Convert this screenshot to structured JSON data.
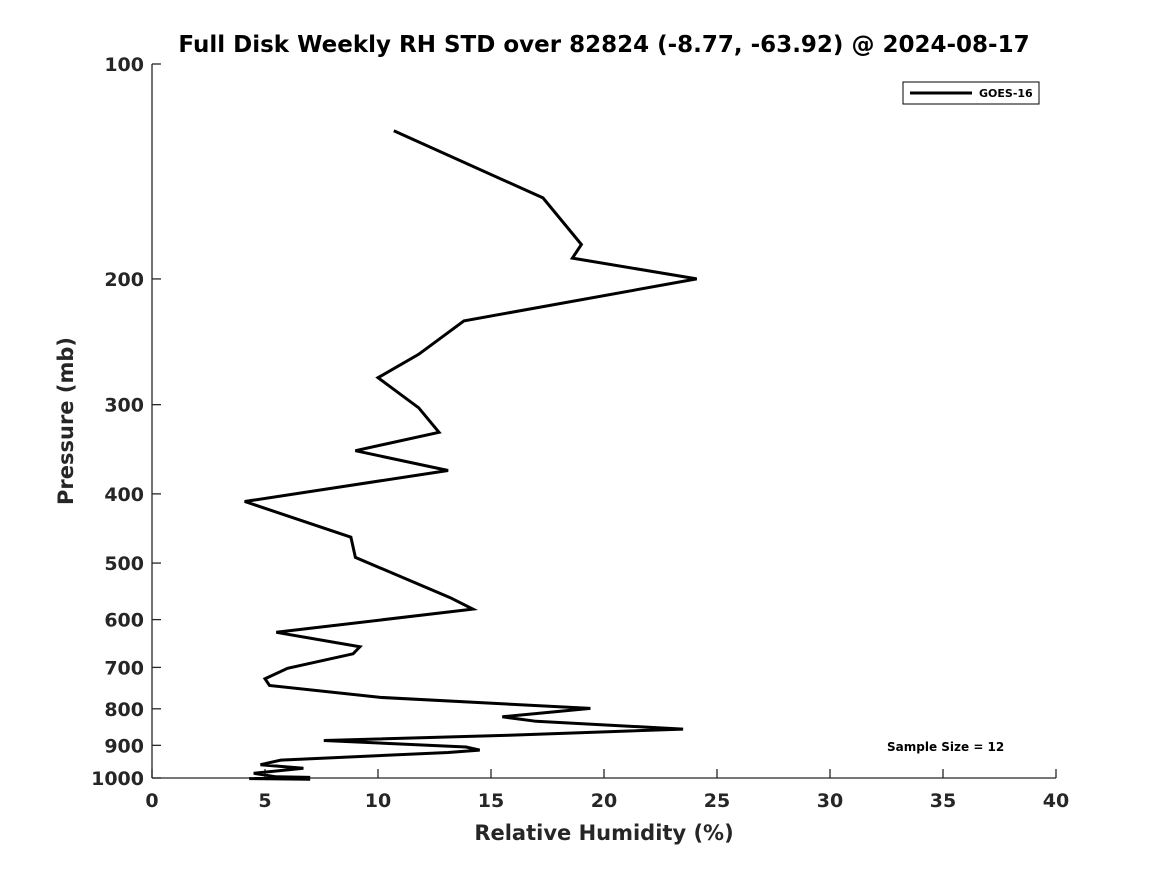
{
  "chart_data": {
    "type": "line",
    "title": "Full Disk Weekly RH STD over 82824 (-8.77, -63.92) @ 2024-08-17",
    "xlabel": "Relative Humidity (%)",
    "ylabel": "Pressure (mb)",
    "xlim": [
      0,
      40
    ],
    "ylim": [
      100,
      1000
    ],
    "y_scale": "log",
    "y_reversed": true,
    "grid": false,
    "x_ticks": [
      0,
      5,
      10,
      15,
      20,
      25,
      30,
      35,
      40
    ],
    "x_tick_labels": [
      "0",
      "5",
      "10",
      "15",
      "20",
      "25",
      "30",
      "35",
      "40"
    ],
    "y_ticks": [
      100,
      200,
      300,
      400,
      500,
      600,
      700,
      800,
      900,
      1000
    ],
    "y_tick_labels": [
      "100",
      "200",
      "300",
      "400",
      "500",
      "600",
      "700",
      "800",
      "900",
      "1000"
    ],
    "legend_position": "top-right",
    "annotation": "Sample Size = 12",
    "series": [
      {
        "name": "GOES-16",
        "color": "#000000",
        "x": [
          10.7,
          17.3,
          19.0,
          18.6,
          24.1,
          13.8,
          11.8,
          10.0,
          11.8,
          12.7,
          9.0,
          13.1,
          4.1,
          8.8,
          9.0,
          13.2,
          14.2,
          5.5,
          9.2,
          8.9,
          6.0,
          5.0,
          5.2,
          10.1,
          19.4,
          15.5,
          17.0,
          23.5,
          15.8,
          7.6,
          13.9,
          14.5,
          13.1,
          5.7,
          4.8,
          6.7,
          4.5,
          5.5,
          7.0,
          4.3,
          7.0
        ],
        "y": [
          124,
          154,
          179,
          187,
          200,
          229,
          255,
          275,
          303,
          328,
          348,
          371,
          410,
          460,
          491,
          559,
          580,
          625,
          655,
          670,
          702,
          726,
          742,
          771,
          799,
          821,
          833,
          854,
          871,
          886,
          905,
          914,
          921,
          944,
          958,
          969,
          985,
          996,
          998,
          1002,
          1004
        ]
      }
    ]
  }
}
